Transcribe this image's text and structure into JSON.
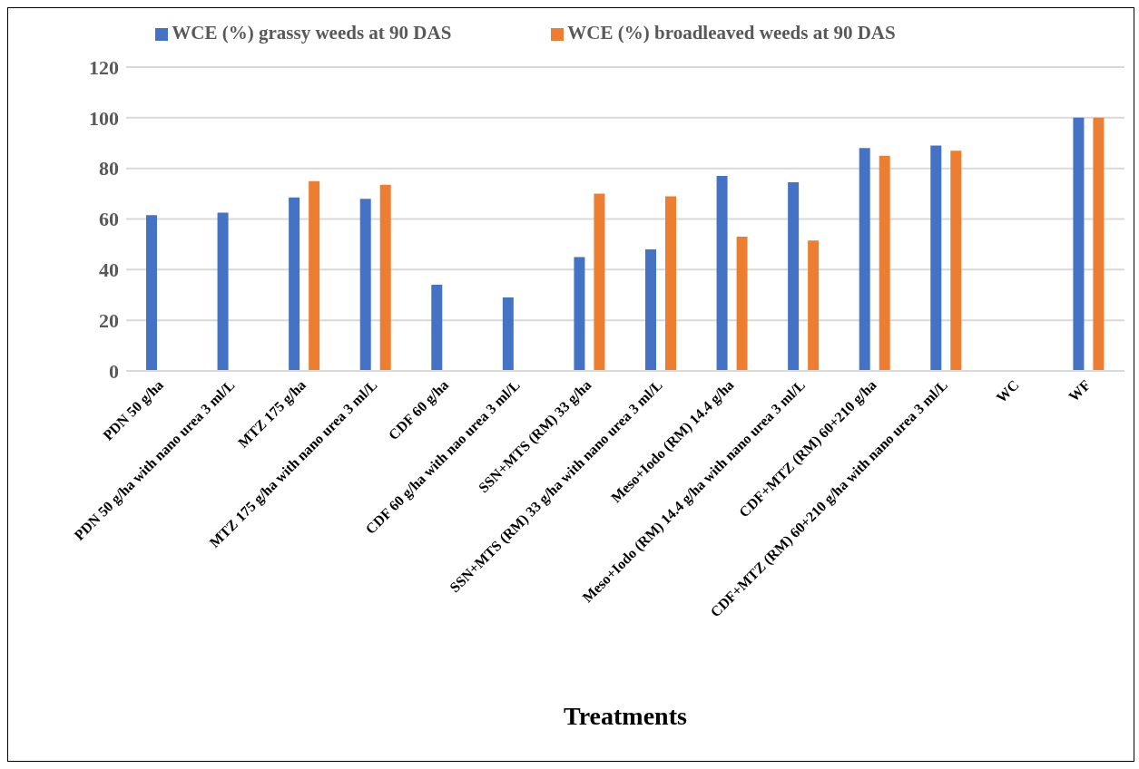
{
  "chart_data": {
    "type": "bar",
    "xlabel": "Treatments",
    "categories": [
      "PDN 50 g/ha",
      "PDN 50 g/ha with nano urea 3 ml/L",
      "MTZ 175 g/ha",
      "MTZ 175 g/ha with nano urea 3 ml/L",
      "CDF 60 g/ha",
      "CDF 60 g/ha with nao urea 3 ml/L",
      "SSN+MTS (RM) 33 g/ha",
      "SSN+MTS (RM) 33 g/ha with nano urea 3 ml/L",
      "Meso+Iodo (RM) 14.4 g/ha",
      "Meso+Iodo (RM) 14.4 g/ha with nano urea 3 ml/L",
      "CDF+MTZ (RM) 60+210 g/ha",
      "CDF+MTZ (RM) 60+210 g/ha with nano urea 3 ml/L",
      "WC",
      "WF"
    ],
    "series": [
      {
        "name": "WCE (%)  grassy weeds at 90 DAS",
        "color": "#4472c4",
        "values": [
          61.5,
          62.5,
          68.5,
          68,
          34,
          29,
          45,
          48,
          77,
          74.5,
          88,
          89,
          null,
          100
        ]
      },
      {
        "name": "WCE (%) broadleaved weeds at 90 DAS",
        "color": "#ed7d31",
        "values": [
          null,
          null,
          75,
          73.5,
          null,
          null,
          70,
          69,
          53,
          51.5,
          85,
          87,
          null,
          100
        ]
      }
    ],
    "ylim": [
      0,
      120
    ],
    "yticks": [
      0,
      20,
      40,
      60,
      80,
      100,
      120
    ],
    "grid": "y",
    "legend": "top"
  }
}
